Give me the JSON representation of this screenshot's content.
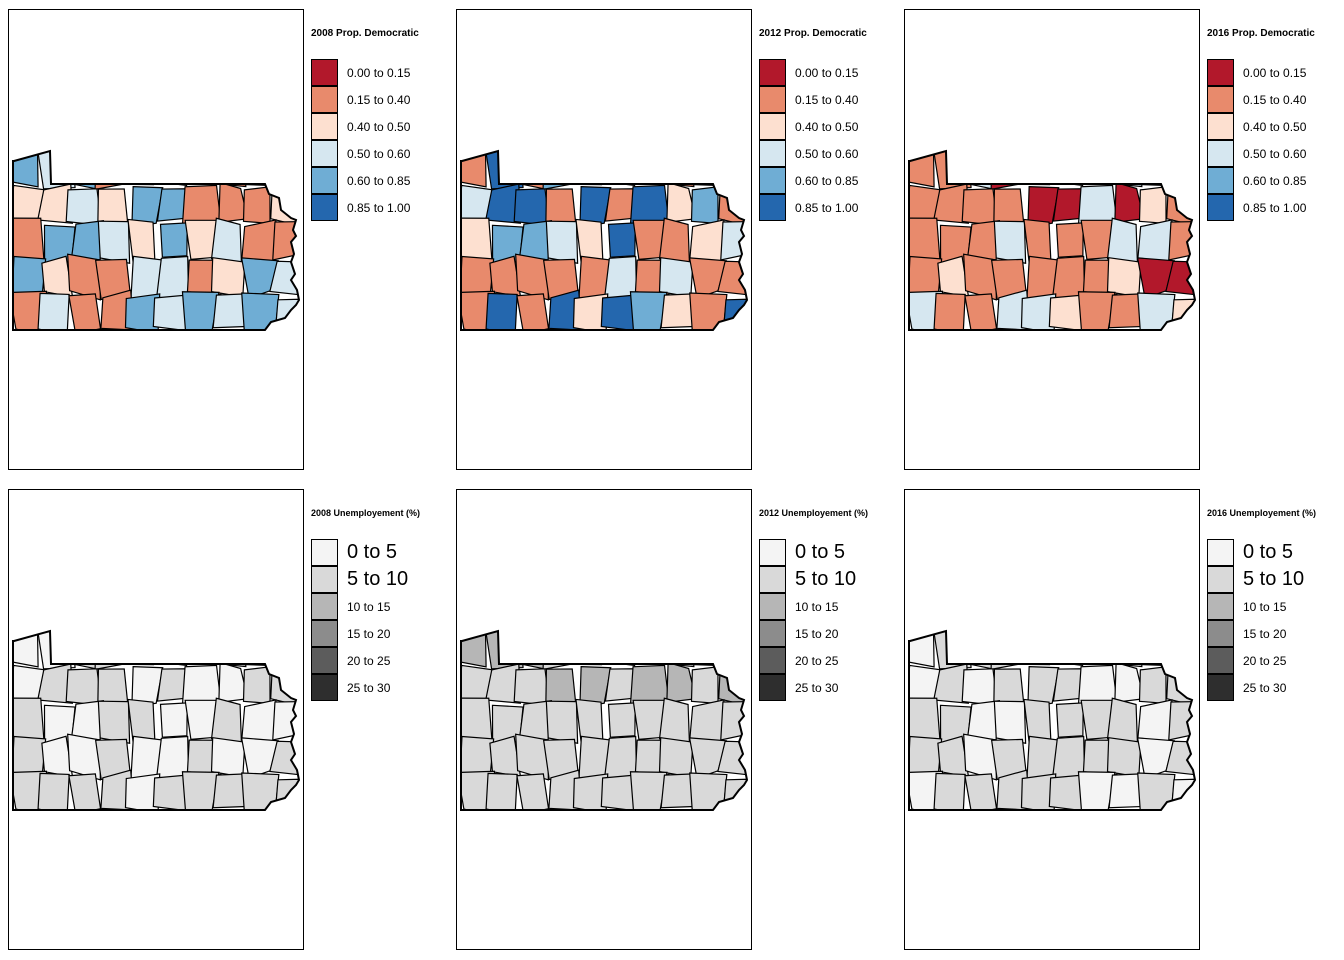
{
  "election_legend": [
    {
      "label": "0.00 to 0.15",
      "color": "#b2182b"
    },
    {
      "label": "0.15 to 0.40",
      "color": "#e88a6c"
    },
    {
      "label": "0.40 to 0.50",
      "color": "#fde0d0"
    },
    {
      "label": "0.50 to 0.60",
      "color": "#d6e7f0"
    },
    {
      "label": "0.60 to 0.85",
      "color": "#6fadd4"
    },
    {
      "label": "0.85 to 1.00",
      "color": "#2467ae"
    }
  ],
  "unemployment_legend": [
    {
      "label": "0 to 5",
      "color": "#f4f4f4"
    },
    {
      "label": "5 to 10",
      "color": "#d9d9d9"
    },
    {
      "label": "10 to 15",
      "color": "#b6b6b6"
    },
    {
      "label": "15 to 20",
      "color": "#8c8c8c"
    },
    {
      "label": "20 to 25",
      "color": "#5c5c5c"
    },
    {
      "label": "25 to 30",
      "color": "#2e2e2e"
    }
  ],
  "panels": [
    {
      "id": "p2008-dem",
      "title": "2008 Prop. Democratic",
      "type": "election",
      "fills": [
        "e88a6c",
        "fde0d0",
        "d6e7f0",
        "6fadd4"
      ]
    },
    {
      "id": "p2012-dem",
      "title": "2012 Prop. Democratic",
      "type": "election",
      "fills": [
        "e88a6c",
        "e88a6c",
        "fde0d0",
        "d6e7f0",
        "6fadd4",
        "2467ae"
      ]
    },
    {
      "id": "p2016-dem",
      "title": "2016 Prop. Democratic",
      "type": "election",
      "fills": [
        "e88a6c",
        "e88a6c",
        "e88a6c",
        "fde0d0",
        "d6e7f0",
        "b2182b"
      ]
    },
    {
      "id": "p2008-unemp",
      "title": "2008 Unemployement (%)",
      "type": "unemployment",
      "fills": [
        "d9d9d9",
        "d9d9d9",
        "f4f4f4"
      ]
    },
    {
      "id": "p2012-unemp",
      "title": "2012 Unemployement (%)",
      "type": "unemployment",
      "fills": [
        "d9d9d9",
        "d9d9d9",
        "d9d9d9",
        "b6b6b6"
      ]
    },
    {
      "id": "p2016-unemp",
      "title": "2016 Unemployement (%)",
      "type": "unemployment",
      "fills": [
        "d9d9d9",
        "d9d9d9",
        "f4f4f4"
      ]
    }
  ]
}
